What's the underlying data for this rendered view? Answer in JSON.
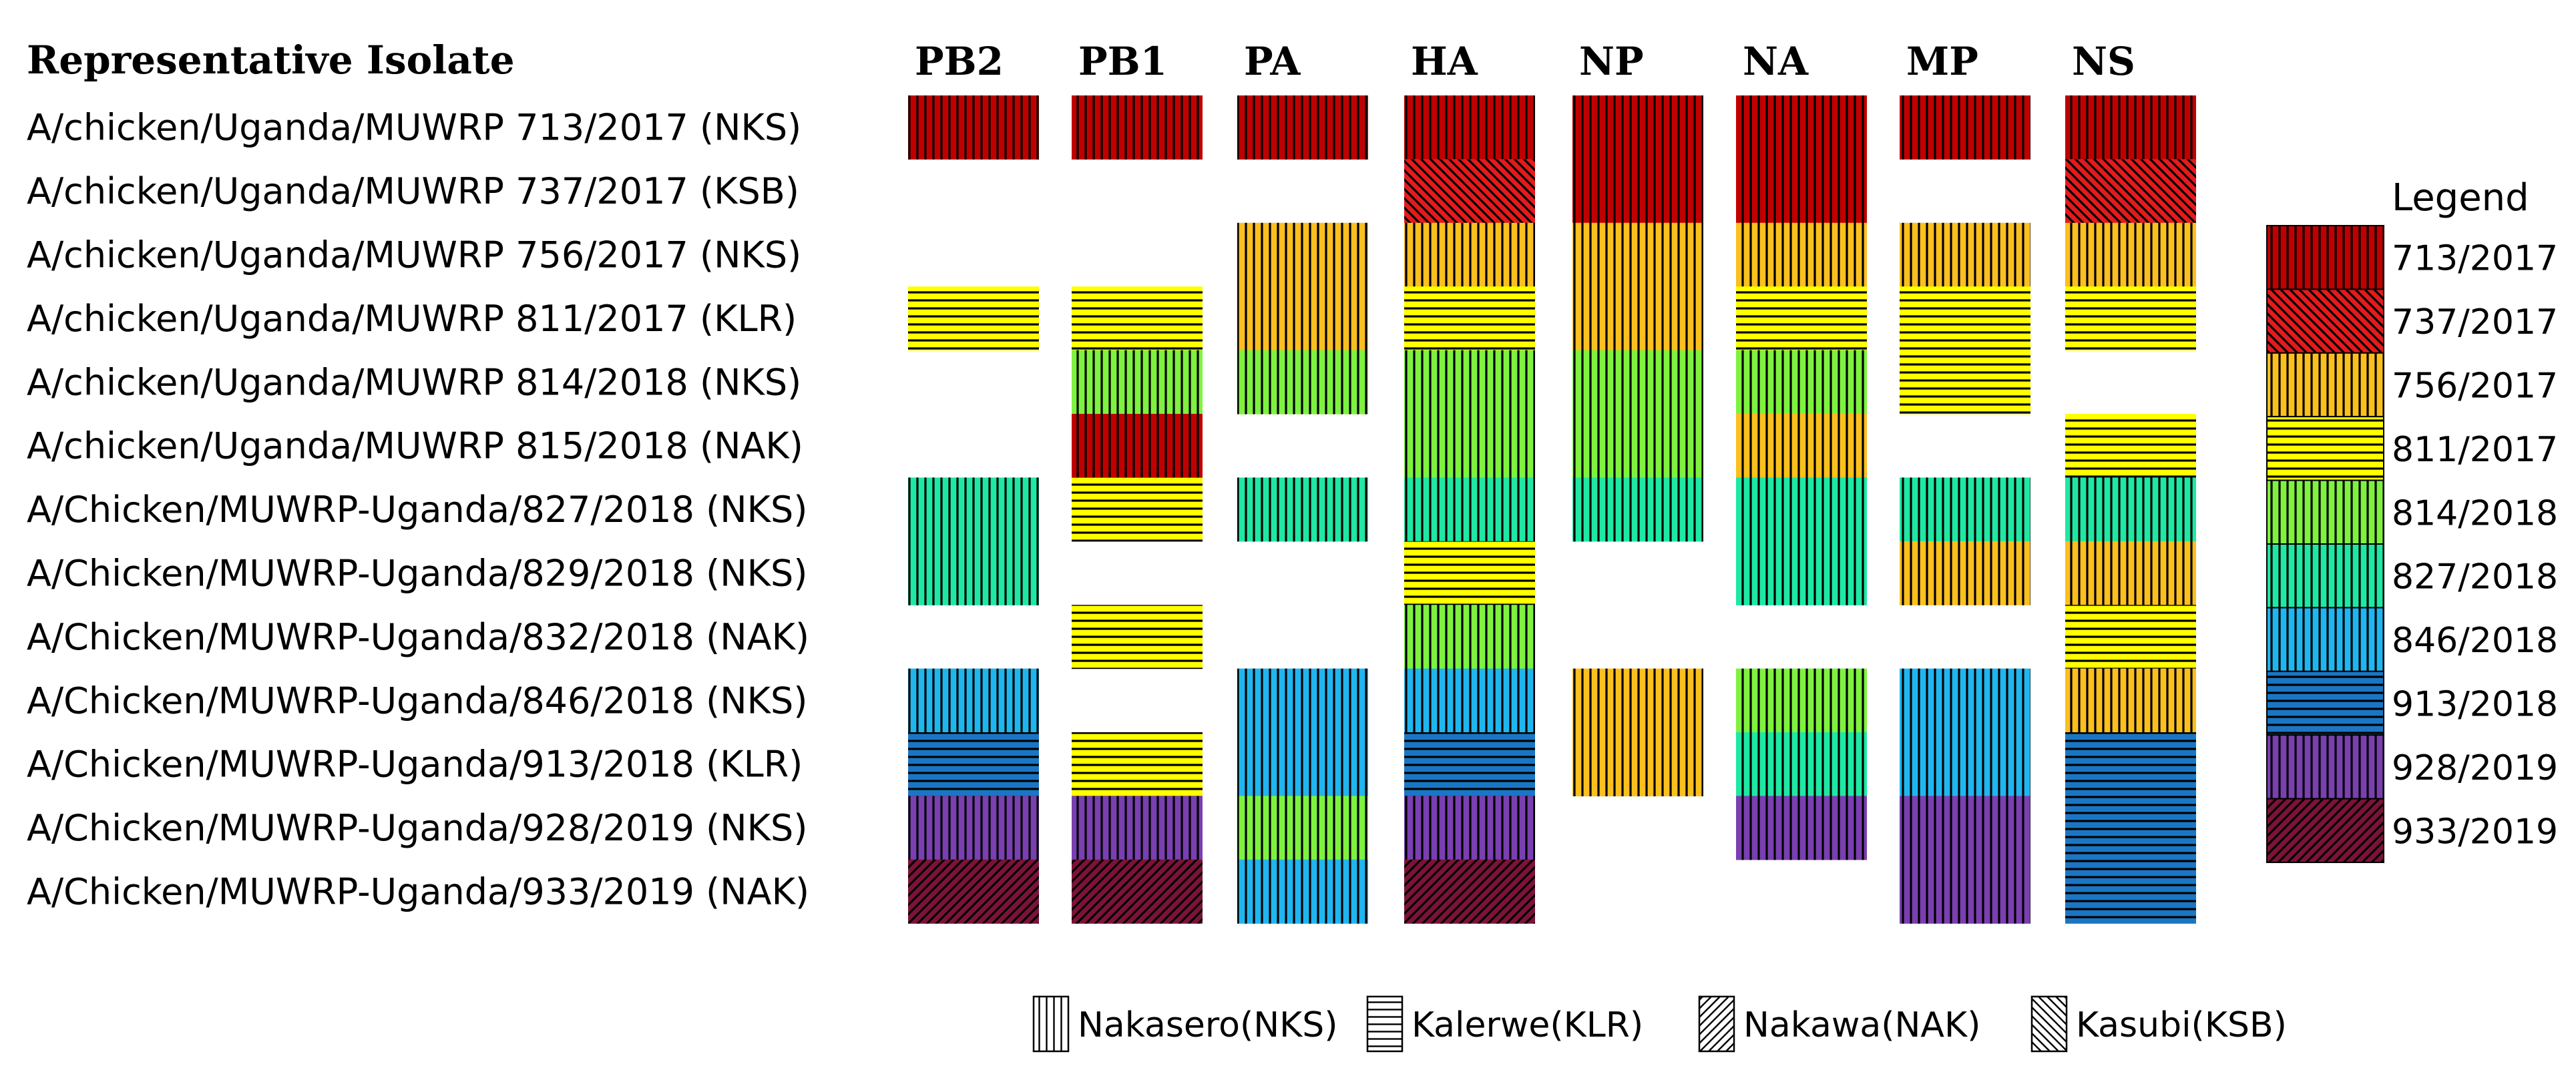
{
  "title": "Representative Isolate",
  "legend_title": "Legend",
  "segments": [
    "PB2",
    "PB1",
    "PA",
    "HA",
    "NP",
    "NA",
    "MP",
    "NS"
  ],
  "isolates": [
    "A/chicken/Uganda/MUWRP 713/2017 (NKS)",
    "A/chicken/Uganda/MUWRP 737/2017 (KSB)",
    "A/chicken/Uganda/MUWRP 756/2017 (NKS)",
    "A/chicken/Uganda/MUWRP 811/2017 (KLR)",
    "A/chicken/Uganda/MUWRP 814/2018 (NKS)",
    "A/chicken/Uganda/MUWRP 815/2018 (NAK)",
    "A/Chicken/MUWRP-Uganda/827/2018 (NKS)",
    "A/Chicken/MUWRP-Uganda/829/2018 (NKS)",
    "A/Chicken/MUWRP-Uganda/832/2018 (NAK)",
    "A/Chicken/MUWRP-Uganda/846/2018 (NKS)",
    "A/Chicken/MUWRP-Uganda/913/2018 (KLR)",
    "A/Chicken/MUWRP-Uganda/928/2019 (NKS)",
    "A/Chicken/MUWRP-Uganda/933/2019 (NAK)"
  ],
  "lineages": [
    {
      "label": "713/2017",
      "color": "#c00000",
      "pattern": "NKS"
    },
    {
      "label": "737/2017",
      "color": "#e41a1c",
      "pattern": "KSB"
    },
    {
      "label": "756/2017",
      "color": "#fbbf1e",
      "pattern": "NKS"
    },
    {
      "label": "811/2017",
      "color": "#ffff00",
      "pattern": "KLR"
    },
    {
      "label": "814/2018",
      "color": "#7ef23f",
      "pattern": "NKS"
    },
    {
      "label": "827/2018",
      "color": "#1ee8a4",
      "pattern": "NKS"
    },
    {
      "label": "846/2018",
      "color": "#1fb6f0",
      "pattern": "NKS"
    },
    {
      "label": "913/2018",
      "color": "#1a76c4",
      "pattern": "KLR"
    },
    {
      "label": "928/2019",
      "color": "#7a3fb0",
      "pattern": "NKS"
    },
    {
      "label": "933/2019",
      "color": "#7d1238",
      "pattern": "NAK"
    }
  ],
  "pattern_key": [
    {
      "code": "NKS",
      "label": "Nakasero(NKS)",
      "style": "vertical"
    },
    {
      "code": "KLR",
      "label": "Kalerwe(KLR)",
      "style": "horizontal"
    },
    {
      "code": "NAK",
      "label": "Nakawa(NAK)",
      "style": "diagonal-forward"
    },
    {
      "code": "KSB",
      "label": "Kasubi(KSB)",
      "style": "diagonal-back"
    }
  ],
  "grid": [
    [
      "713/2017",
      "713/2017",
      "713/2017",
      "713/2017",
      "713/2017",
      "713/2017",
      "713/2017",
      "713/2017"
    ],
    [
      null,
      null,
      null,
      "737/2017",
      "713/2017",
      "713/2017",
      null,
      "737/2017"
    ],
    [
      null,
      null,
      "756/2017",
      "756/2017",
      "756/2017",
      "756/2017",
      "756/2017",
      "756/2017"
    ],
    [
      "811/2017",
      "811/2017",
      "756/2017",
      "811/2017",
      "756/2017",
      "811/2017",
      "811/2017",
      "811/2017"
    ],
    [
      null,
      "814/2018",
      "814/2018",
      "814/2018",
      "814/2018",
      "814/2018",
      "811/2017",
      null
    ],
    [
      null,
      "713/2017",
      null,
      "814/2018",
      "814/2018",
      "756/2017",
      null,
      "811/2017"
    ],
    [
      "827/2018",
      "811/2017",
      "827/2018",
      "827/2018",
      "827/2018",
      "827/2018",
      "827/2018",
      "827/2018"
    ],
    [
      "827/2018",
      null,
      null,
      "811/2017",
      null,
      "827/2018",
      "756/2017",
      "756/2017"
    ],
    [
      null,
      "811/2017",
      null,
      "814/2018",
      null,
      null,
      null,
      "811/2017"
    ],
    [
      "846/2018",
      null,
      "846/2018",
      "846/2018",
      "756/2017",
      "814/2018",
      "846/2018",
      "756/2017"
    ],
    [
      "913/2018",
      "811/2017",
      "846/2018",
      "913/2018",
      "756/2017",
      "827/2018",
      "846/2018",
      "913/2018"
    ],
    [
      "928/2019",
      "928/2019",
      "814/2018",
      "928/2019",
      null,
      "928/2019",
      "928/2019",
      "913/2018"
    ],
    [
      "933/2019",
      "933/2019",
      "846/2018",
      "933/2019",
      null,
      null,
      "928/2019",
      "913/2018"
    ]
  ]
}
